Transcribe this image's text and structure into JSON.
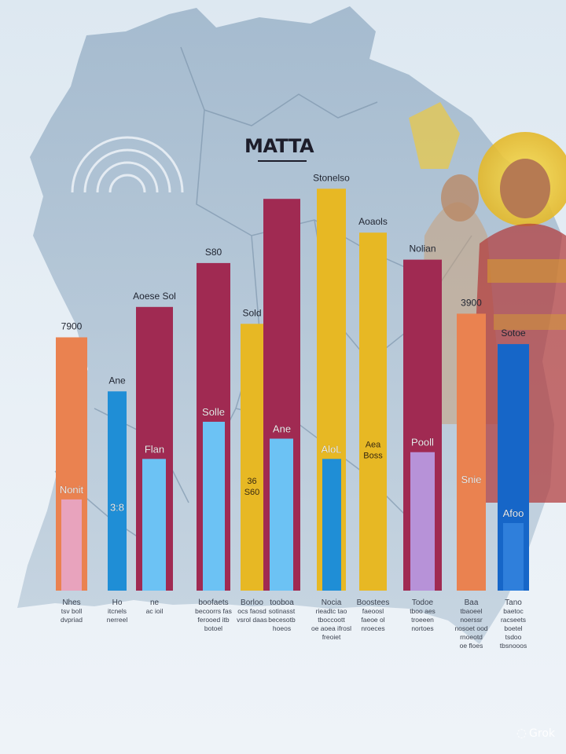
{
  "title": "MATTA",
  "watermark": "Grok",
  "colors": {
    "orange": "#ea8250",
    "pink": "#e8a3bd",
    "blue": "#1f8ed6",
    "lightblue": "#6cc2f4",
    "crimson": "#a02a52",
    "gold": "#e7b824",
    "violet": "#b792d8",
    "darkblue": "#1666c8",
    "cobalt": "#2f7fdb"
  },
  "chart_data": {
    "type": "bar",
    "title": "MATTA",
    "bars": [
      {
        "top_label": "7900",
        "inner_label": "Nonit",
        "value": 75,
        "inner_value": 27,
        "color": "orange",
        "inner_color": "pink",
        "bottom_label": [
          "Nhes",
          "tsv boll",
          "dvpriad"
        ]
      },
      {
        "top_label": "Ane",
        "inner_label": "3:8",
        "value": 59,
        "inner_value": 0,
        "color": "blue",
        "inner_color": "",
        "bottom_label": [
          "Ho",
          "itcnels",
          "nerreel"
        ]
      },
      {
        "top_label": "Aoese Sol",
        "inner_label": "Flan",
        "value": 84,
        "inner_value": 39,
        "color": "crimson",
        "inner_color": "lightblue",
        "bottom_label": [
          "ne",
          "ac ioil"
        ]
      },
      {
        "top_label": "S80",
        "inner_label": "Solle",
        "value": 97,
        "inner_value": 50,
        "color": "crimson",
        "inner_color": "lightblue",
        "bottom_label": [
          "boofaets",
          "becoorrs fas",
          "ferooed itb",
          "botoel"
        ]
      },
      {
        "top_label": "Sold",
        "inner_label": "36 S60",
        "value": 79,
        "inner_value": 0,
        "color": "gold",
        "inner_color": "",
        "bottom_label": [
          "Borloo",
          "ocs faosd",
          "vsrol daas"
        ]
      },
      {
        "top_label": "",
        "inner_label": "Ane",
        "value": 116,
        "inner_value": 45,
        "color": "crimson",
        "inner_color": "lightblue",
        "bottom_label": [
          "tooboa",
          "sotinasst",
          "becesotb",
          "hoeos"
        ]
      },
      {
        "top_label": "Stonelso",
        "inner_label": "AloL",
        "value": 119,
        "inner_value": 39,
        "color": "gold",
        "inner_color": "blue",
        "bottom_label": [
          "Nocia",
          "rieadtc tao",
          "tboccoott",
          "oe aoea ifrosl",
          "freoiet"
        ]
      },
      {
        "top_label": "Aoaols",
        "inner_label": "Aea Boss",
        "value": 106,
        "inner_value": 0,
        "color": "gold",
        "inner_color": "",
        "bottom_label": [
          "Boostees",
          "faeoosl",
          "faeoe ol",
          "nroeces"
        ]
      },
      {
        "top_label": "Nolian",
        "inner_label": "Pooll",
        "value": 98,
        "inner_value": 41,
        "color": "crimson",
        "inner_color": "violet",
        "bottom_label": [
          "Todoe",
          "tboo aes",
          "troeeen",
          "nortoes"
        ]
      },
      {
        "top_label": "3900",
        "inner_label": "Snie",
        "value": 82,
        "inner_value": 30,
        "color": "orange",
        "inner_color": "orange",
        "bottom_label": [
          "Baa",
          "tbaoeel",
          "noerssr",
          "nosoet ood",
          "rnoeotd",
          "oe floes"
        ]
      },
      {
        "top_label": "Sotoe",
        "inner_label": "Afoo",
        "value": 73,
        "inner_value": 20,
        "color": "darkblue",
        "inner_color": "cobalt",
        "bottom_label": [
          "Tano",
          "baetoc",
          "racseets",
          "boetel",
          "tsdoo",
          "tbsnooos"
        ]
      }
    ]
  }
}
